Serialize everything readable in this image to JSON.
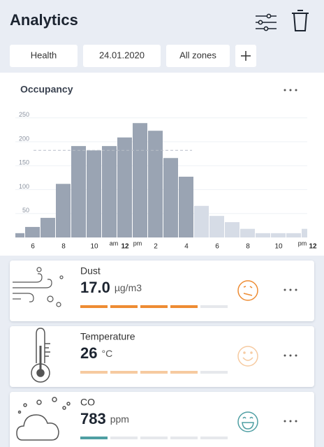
{
  "header": {
    "title": "Analytics"
  },
  "filters": [
    "Health",
    "24.01.2020",
    "All zones"
  ],
  "chart_data": {
    "type": "bar",
    "title": "Occupancy",
    "categories": [
      null,
      "6",
      null,
      "8",
      null,
      "10",
      null,
      "12",
      null,
      "2",
      null,
      "4",
      null,
      "6",
      null,
      "8",
      null,
      "10",
      null,
      "12"
    ],
    "values": [
      9,
      22,
      41,
      112,
      191,
      182,
      191,
      209,
      239,
      223,
      166,
      127,
      66,
      45,
      32,
      18,
      9,
      9,
      9,
      18
    ],
    "colors": [
      "#9aa4b3",
      "#9aa4b3",
      "#9aa4b3",
      "#9aa4b3",
      "#9aa4b3",
      "#9aa4b3",
      "#9aa4b3",
      "#9aa4b3",
      "#9aa4b3",
      "#9aa4b3",
      "#9aa4b3",
      "#9aa4b3",
      "#d6dce6",
      "#d6dce6",
      "#d6dce6",
      "#d6dce6",
      "#d6dce6",
      "#d6dce6",
      "#d6dce6",
      "#d6dce6"
    ],
    "period_labels": [
      "am",
      "pm",
      "pm"
    ],
    "ylim": [
      0,
      270
    ],
    "yticks": [
      50,
      100,
      150,
      200,
      250
    ],
    "reference_line": 182,
    "grid": true
  },
  "sensors": [
    {
      "name": "Dust",
      "value": "17.0",
      "unit": "µg/m3",
      "level": 4,
      "segments": 5,
      "color": "#ee8c33"
    },
    {
      "name": "Temperature",
      "value": "26",
      "unit": "°C",
      "level": 4,
      "segments": 5,
      "color": "#f6caa0"
    },
    {
      "name": "CO",
      "value": "783",
      "unit": "ppm",
      "level": 1,
      "segments": 5,
      "color": "#4f9fa3"
    }
  ]
}
